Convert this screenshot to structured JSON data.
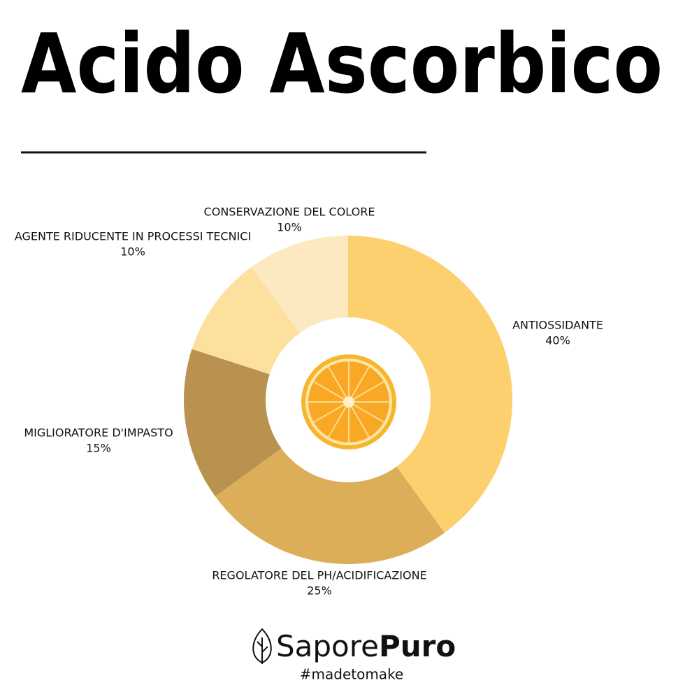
{
  "chart_data": {
    "type": "donut",
    "title": "Acido Ascorbico",
    "categories": [
      "ANTIOSSIDANTE",
      "REGOLATORE DEL PH/ACIDIFICAZIONE",
      "MIGLIORATORE D'IMPASTO",
      "AGENTE RIDUCENTE IN PROCESSI TECNICI",
      "CONSERVAZIONE DEL COLORE"
    ],
    "values": [
      40,
      25,
      15,
      10,
      10
    ],
    "value_labels": [
      "40%",
      "25%",
      "15%",
      "10%",
      "10%"
    ],
    "colors": [
      "#fdd06f",
      "#dcae5a",
      "#b8924e",
      "#fddf9e",
      "#fde9c0"
    ]
  },
  "footer": {
    "brand_light": "Sapore",
    "brand_bold": "Puro",
    "hashtag": "#madetomake"
  }
}
